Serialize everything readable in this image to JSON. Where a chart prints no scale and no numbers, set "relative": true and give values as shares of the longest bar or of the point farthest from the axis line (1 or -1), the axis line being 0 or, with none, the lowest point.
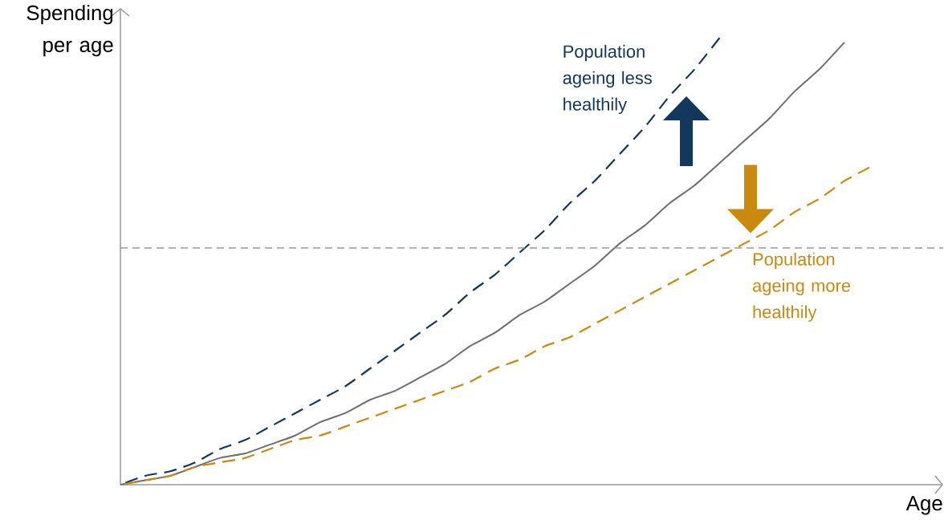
{
  "chart_data": {
    "type": "line",
    "relative": true,
    "xlabel": "Age",
    "ylabel": "Spending per age",
    "categories": [
      null,
      null,
      null,
      null,
      null,
      null,
      null,
      null,
      null,
      null,
      null,
      null,
      null,
      null,
      null,
      null,
      null,
      null,
      null,
      null,
      null,
      null,
      null,
      null,
      null,
      null,
      null,
      null,
      null,
      null,
      null
    ],
    "series": [
      {
        "color": "#6e6e6e",
        "line_style": "solid",
        "values": [
          0,
          0.01,
          0.02,
          0.04,
          0.06,
          0.07,
          0.09,
          0.11,
          0.14,
          0.16,
          0.19,
          0.21,
          0.24,
          0.27,
          0.31,
          0.34,
          0.38,
          0.41,
          0.45,
          0.49,
          0.54,
          0.58,
          0.63,
          0.67,
          0.72,
          0.77,
          0.82,
          0.88,
          0.93,
          0.99,
          null
        ]
      },
      {
        "name": "Population ageing less healthily",
        "color": "#14375e",
        "line_style": "dashed",
        "values": [
          0,
          0.02,
          0.03,
          0.05,
          0.08,
          0.1,
          0.13,
          0.16,
          0.19,
          0.22,
          0.26,
          0.3,
          0.34,
          0.38,
          0.43,
          0.47,
          0.52,
          0.57,
          0.63,
          0.68,
          0.74,
          0.8,
          0.87,
          0.93,
          1.0,
          null,
          null,
          null,
          null,
          null,
          null
        ]
      },
      {
        "name": "Population ageing more healthily",
        "color": "#c98a0f",
        "line_style": "dashed",
        "values": [
          0,
          0.01,
          0.02,
          0.04,
          0.05,
          0.06,
          0.08,
          0.1,
          0.11,
          0.13,
          0.15,
          0.17,
          0.19,
          0.21,
          0.23,
          0.26,
          0.28,
          0.31,
          0.33,
          0.36,
          0.39,
          0.42,
          0.45,
          0.48,
          0.51,
          0.54,
          0.57,
          0.61,
          0.64,
          0.68,
          0.71
        ]
      }
    ],
    "ref_lines": [
      {
        "axis": "y",
        "value": 0.53,
        "color": "#999999",
        "line_style": "dashed"
      }
    ]
  }
}
